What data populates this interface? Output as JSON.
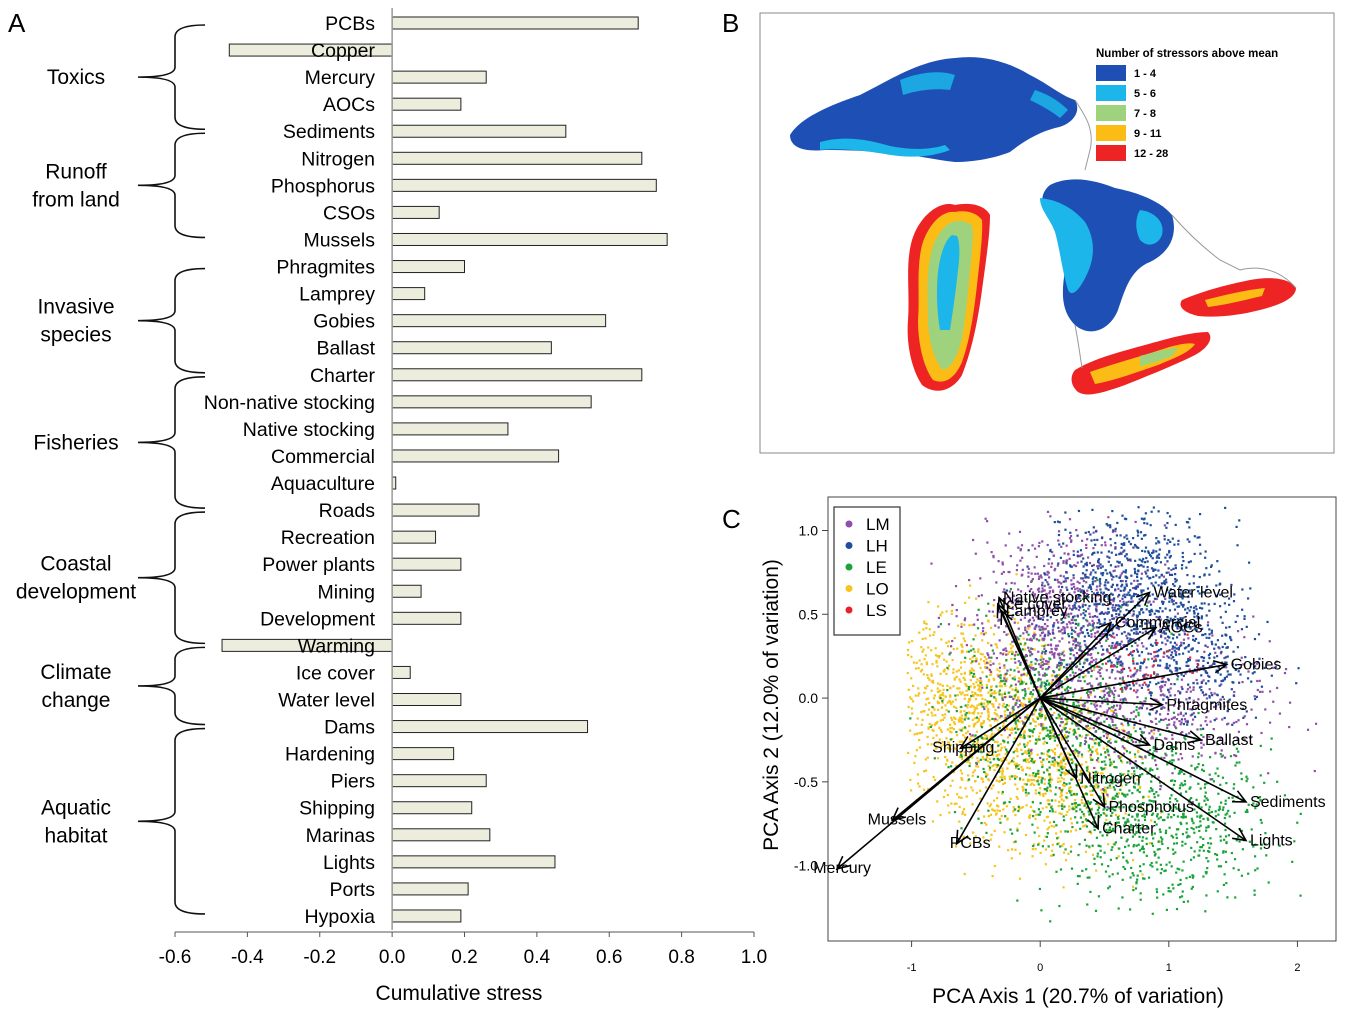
{
  "panel_letters": {
    "a": "A",
    "b": "B",
    "c": "C"
  },
  "chart_data": [
    {
      "type": "bar",
      "orientation": "horizontal",
      "panel": "A",
      "xlabel": "Cumulative stress",
      "xlim": [
        -0.6,
        1.0
      ],
      "xticks": [
        "-0.6",
        "-0.4",
        "-0.2",
        "0.0",
        "0.2",
        "0.4",
        "0.6",
        "0.8",
        "1.0"
      ],
      "bar_color": "#ededde",
      "categories": [
        "PCBs",
        "Copper",
        "Mercury",
        "AOCs",
        "Sediments",
        "Nitrogen",
        "Phosphorus",
        "CSOs",
        "Mussels",
        "Phragmites",
        "Lamprey",
        "Gobies",
        "Ballast",
        "Charter",
        "Non-native stocking",
        "Native stocking",
        "Commercial",
        "Aquaculture",
        "Roads",
        "Recreation",
        "Power plants",
        "Mining",
        "Development",
        "Warming",
        "Ice cover",
        "Water level",
        "Dams",
        "Hardening",
        "Piers",
        "Shipping",
        "Marinas",
        "Lights",
        "Ports",
        "Hypoxia"
      ],
      "values": [
        0.68,
        -0.45,
        0.26,
        0.19,
        0.48,
        0.69,
        0.73,
        0.13,
        0.76,
        0.2,
        0.09,
        0.59,
        0.44,
        0.69,
        0.55,
        0.32,
        0.46,
        0.01,
        0.24,
        0.12,
        0.19,
        0.08,
        0.19,
        -0.47,
        0.05,
        0.19,
        0.54,
        0.17,
        0.26,
        0.22,
        0.27,
        0.45,
        0.21,
        0.19
      ],
      "groups": [
        {
          "label": [
            "Toxics"
          ],
          "first": 0,
          "last": 4
        },
        {
          "label": [
            "Runoff",
            "from land"
          ],
          "first": 4,
          "last": 8
        },
        {
          "label": [
            "Invasive",
            "species"
          ],
          "first": 9,
          "last": 13
        },
        {
          "label": [
            "Fisheries"
          ],
          "first": 13,
          "last": 18
        },
        {
          "label": [
            "Coastal",
            "development"
          ],
          "first": 18,
          "last": 23
        },
        {
          "label": [
            "Climate",
            "change"
          ],
          "first": 23,
          "last": 26
        },
        {
          "label": [
            "Aquatic",
            "habitat"
          ],
          "first": 26,
          "last": 33
        }
      ]
    },
    {
      "type": "map",
      "panel": "B",
      "legend_title": "Number of stressors above mean",
      "legend": [
        {
          "label": "1 - 4",
          "color": "#1d4fb4"
        },
        {
          "label": "5 - 6",
          "color": "#1cb6ea"
        },
        {
          "label": "7 - 8",
          "color": "#9ed27c"
        },
        {
          "label": "9 - 11",
          "color": "#fbbd15"
        },
        {
          "label": "12 - 28",
          "color": "#ee2424"
        }
      ]
    },
    {
      "type": "scatter",
      "panel": "C",
      "xlabel": "PCA Axis 1 (20.7% of variation)",
      "ylabel": "PCA Axis 2 (12.0% of variation)",
      "xlim": [
        -1.65,
        2.3
      ],
      "ylim": [
        -1.45,
        1.2
      ],
      "xticks": [
        -1,
        0,
        1,
        2
      ],
      "yticks": [
        "1.0",
        "0.5",
        "0.0",
        "-0.5",
        "-1.0"
      ],
      "legend": [
        {
          "name": "LM",
          "color": "#8e4fa8"
        },
        {
          "name": "LH",
          "color": "#1f4e9c"
        },
        {
          "name": "LE",
          "color": "#1aa33a"
        },
        {
          "name": "LO",
          "color": "#f6c41c"
        },
        {
          "name": "LS",
          "color": "#e8222c"
        }
      ],
      "vectors": [
        {
          "label": "Native stocking",
          "x": -0.32,
          "y": 0.6
        },
        {
          "label": "Ice cover",
          "x": -0.33,
          "y": 0.56
        },
        {
          "label": "Lamprey",
          "x": -0.3,
          "y": 0.52
        },
        {
          "label": "Water level",
          "x": 0.85,
          "y": 0.63
        },
        {
          "label": "Commercial",
          "x": 0.55,
          "y": 0.45
        },
        {
          "label": "AOCs",
          "x": 0.9,
          "y": 0.42
        },
        {
          "label": "Gobies",
          "x": 1.45,
          "y": 0.2
        },
        {
          "label": "Phragmites",
          "x": 0.95,
          "y": -0.04
        },
        {
          "label": "Ballast",
          "x": 1.25,
          "y": -0.25
        },
        {
          "label": "Dams",
          "x": 0.85,
          "y": -0.28
        },
        {
          "label": "Sediments",
          "x": 1.6,
          "y": -0.62
        },
        {
          "label": "Lights",
          "x": 1.6,
          "y": -0.85
        },
        {
          "label": "Phosphorus",
          "x": 0.5,
          "y": -0.65
        },
        {
          "label": "Nitrogen",
          "x": 0.28,
          "y": -0.48
        },
        {
          "label": "Charter",
          "x": 0.45,
          "y": -0.78
        },
        {
          "label": "Shipping",
          "x": -0.62,
          "y": -0.3
        },
        {
          "label": "Mussels",
          "x": -1.15,
          "y": -0.73
        },
        {
          "label": "PCBs",
          "x": -0.65,
          "y": -0.87
        },
        {
          "label": "Mercury",
          "x": -1.58,
          "y": -1.02
        }
      ]
    }
  ]
}
